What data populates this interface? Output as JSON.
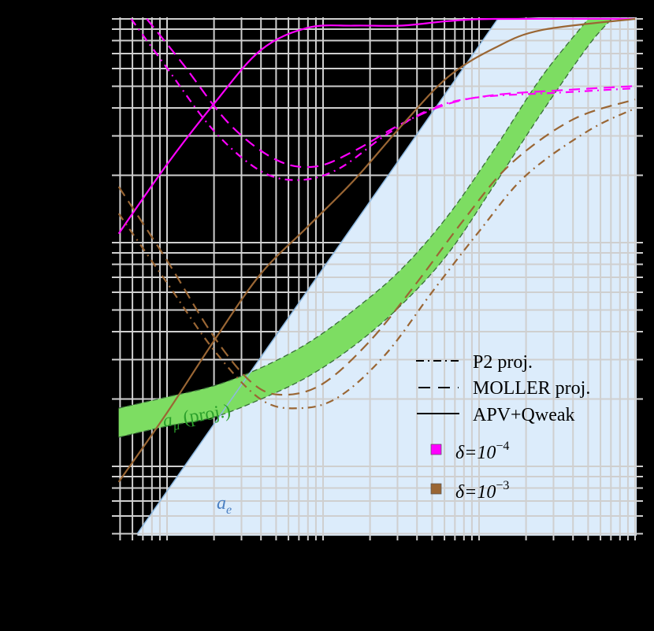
{
  "chart_data": {
    "type": "line",
    "title": "",
    "xlabel": "",
    "ylabel": "",
    "axes": {
      "scale_x": "log",
      "scale_y": "log",
      "tick_labels_visible": false,
      "note": "Coordinates are expressed in decades relative to gridline majors: x=0,1,2,3 are the four major vertical gridlines; y=0,1,2 are the three major horizontal gridlines (bottom to top).",
      "xlim_decades": [
        -0.31,
        3.01
      ],
      "ylim_decades": [
        -0.3,
        2.04
      ],
      "grid": true
    },
    "legend": {
      "position": "lower right",
      "line_styles": [
        {
          "style": "dash-dot",
          "label": "P2 proj."
        },
        {
          "style": "dashed",
          "label": "MOLLER proj."
        },
        {
          "style": "solid",
          "label": "APV+Qweak"
        }
      ],
      "colors": [
        {
          "color": "#ff00ff",
          "label_prefix": "δ=10",
          "exponent": "−4"
        },
        {
          "color": "#9a6634",
          "label_prefix": "δ=10",
          "exponent": "−3"
        }
      ]
    },
    "annotations": [
      {
        "text": "a",
        "sub": "μ",
        "suffix": " (proj.)",
        "color": "#2ca02c",
        "x": 0.0,
        "y": 0.21
      },
      {
        "text": "a",
        "sub": "e",
        "suffix": "",
        "color": "#4a7fc1",
        "x": 0.37,
        "y": -0.17
      }
    ],
    "regions": [
      {
        "name": "a_e excluded",
        "color": "#dcecfb",
        "edge_color": "#8db8e0",
        "boundary": [
          [
            -0.19,
            -0.3
          ],
          [
            2.12,
            2.0
          ]
        ]
      },
      {
        "name": "a_mu projected band",
        "color": "#7ddd62",
        "edge_color": "#3b6e3b",
        "upper": [
          [
            -0.31,
            0.26
          ],
          [
            0.0,
            0.31
          ],
          [
            0.3,
            0.36
          ],
          [
            0.6,
            0.44
          ],
          [
            0.9,
            0.55
          ],
          [
            1.2,
            0.7
          ],
          [
            1.5,
            0.88
          ],
          [
            1.8,
            1.12
          ],
          [
            2.1,
            1.42
          ],
          [
            2.4,
            1.74
          ],
          [
            2.7,
            2.0
          ]
        ],
        "lower": [
          [
            -0.31,
            0.13
          ],
          [
            0.0,
            0.18
          ],
          [
            0.3,
            0.22
          ],
          [
            0.6,
            0.3
          ],
          [
            0.9,
            0.4
          ],
          [
            1.2,
            0.54
          ],
          [
            1.5,
            0.72
          ],
          [
            1.8,
            0.95
          ],
          [
            2.1,
            1.26
          ],
          [
            2.4,
            1.58
          ],
          [
            2.7,
            1.88
          ],
          [
            2.85,
            2.0
          ]
        ]
      }
    ],
    "series": [
      {
        "name": "APV+Qweak δ=1e-4",
        "color": "#ff00ff",
        "style": "solid",
        "points": [
          [
            -0.31,
            1.04
          ],
          [
            0.0,
            1.35
          ],
          [
            0.3,
            1.62
          ],
          [
            0.6,
            1.86
          ],
          [
            0.9,
            1.96
          ],
          [
            1.2,
            1.97
          ],
          [
            1.5,
            1.97
          ],
          [
            1.8,
            1.99
          ],
          [
            2.1,
            2.0
          ],
          [
            3.0,
            2.0
          ]
        ]
      },
      {
        "name": "MOLLER proj. δ=1e-4",
        "color": "#ff00ff",
        "style": "dashed",
        "points": [
          [
            -0.13,
            2.0
          ],
          [
            0.1,
            1.8
          ],
          [
            0.4,
            1.53
          ],
          [
            0.7,
            1.37
          ],
          [
            0.95,
            1.34
          ],
          [
            1.2,
            1.41
          ],
          [
            1.5,
            1.53
          ],
          [
            1.8,
            1.62
          ],
          [
            2.1,
            1.66
          ],
          [
            2.5,
            1.68
          ],
          [
            3.0,
            1.7
          ]
        ]
      },
      {
        "name": "P2 proj. δ=1e-4",
        "color": "#ff00ff",
        "style": "dash-dot",
        "points": [
          [
            -0.23,
            2.0
          ],
          [
            0.0,
            1.78
          ],
          [
            0.3,
            1.5
          ],
          [
            0.6,
            1.32
          ],
          [
            0.85,
            1.28
          ],
          [
            1.1,
            1.33
          ],
          [
            1.4,
            1.48
          ],
          [
            1.7,
            1.6
          ],
          [
            2.0,
            1.65
          ],
          [
            2.5,
            1.67
          ],
          [
            3.0,
            1.69
          ]
        ]
      },
      {
        "name": "APV+Qweak δ=1e-3",
        "color": "#9a6634",
        "style": "solid",
        "points": [
          [
            -0.31,
            -0.07
          ],
          [
            0.0,
            0.24
          ],
          [
            0.3,
            0.56
          ],
          [
            0.6,
            0.86
          ],
          [
            0.9,
            1.07
          ],
          [
            1.2,
            1.28
          ],
          [
            1.5,
            1.52
          ],
          [
            1.8,
            1.74
          ],
          [
            2.1,
            1.87
          ],
          [
            2.4,
            1.95
          ],
          [
            3.0,
            2.0
          ]
        ]
      },
      {
        "name": "MOLLER proj. δ=1e-3",
        "color": "#9a6634",
        "style": "dashed",
        "points": [
          [
            -0.31,
            1.25
          ],
          [
            0.0,
            0.92
          ],
          [
            0.3,
            0.58
          ],
          [
            0.55,
            0.37
          ],
          [
            0.75,
            0.32
          ],
          [
            1.0,
            0.37
          ],
          [
            1.3,
            0.56
          ],
          [
            1.6,
            0.82
          ],
          [
            1.9,
            1.1
          ],
          [
            2.2,
            1.35
          ],
          [
            2.6,
            1.55
          ],
          [
            3.0,
            1.64
          ]
        ]
      },
      {
        "name": "P2 proj. δ=1e-3",
        "color": "#9a6634",
        "style": "dash-dot",
        "points": [
          [
            -0.31,
            1.13
          ],
          [
            0.0,
            0.82
          ],
          [
            0.3,
            0.52
          ],
          [
            0.6,
            0.3
          ],
          [
            0.85,
            0.26
          ],
          [
            1.1,
            0.31
          ],
          [
            1.4,
            0.5
          ],
          [
            1.7,
            0.78
          ],
          [
            2.0,
            1.05
          ],
          [
            2.3,
            1.3
          ],
          [
            2.7,
            1.5
          ],
          [
            3.0,
            1.6
          ]
        ]
      }
    ]
  }
}
